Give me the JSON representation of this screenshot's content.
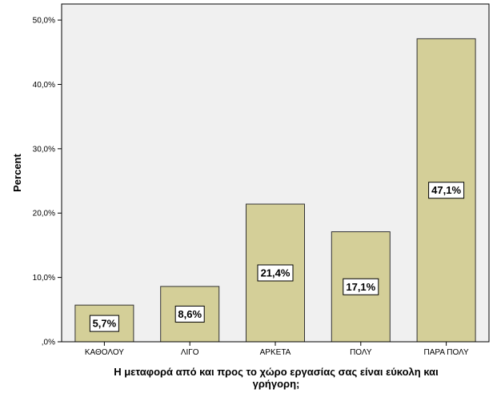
{
  "chart_data": {
    "type": "bar",
    "categories": [
      "ΚΑΘΟΛΟΥ",
      "ΛΙΓΟ",
      "ΑΡΚΕΤΑ",
      "ΠΟΛΥ",
      "ΠΑΡΑ ΠΟΛΥ"
    ],
    "values": [
      5.7,
      8.6,
      21.4,
      17.1,
      47.1
    ],
    "data_labels": [
      "5,7%",
      "8,6%",
      "21,4%",
      "17,1%",
      "47,1%"
    ],
    "ylabel": "Percent",
    "xlabel_lines": [
      "Η μεταφορά από και προς το χώρο εργασίας σας είναι εύκολη και",
      "γρήγορη;"
    ],
    "ylim": [
      0,
      52.5
    ],
    "yticks": [
      0,
      10,
      20,
      30,
      40,
      50
    ],
    "ytick_labels": [
      ",0%",
      "10,0%",
      "20,0%",
      "30,0%",
      "40,0%",
      "50,0%"
    ],
    "grid": false,
    "colors": {
      "bar_fill": "#d4cf98",
      "bar_stroke": "#333333",
      "plot_background": "#f0f0f0",
      "page_background": "#ffffff"
    }
  }
}
